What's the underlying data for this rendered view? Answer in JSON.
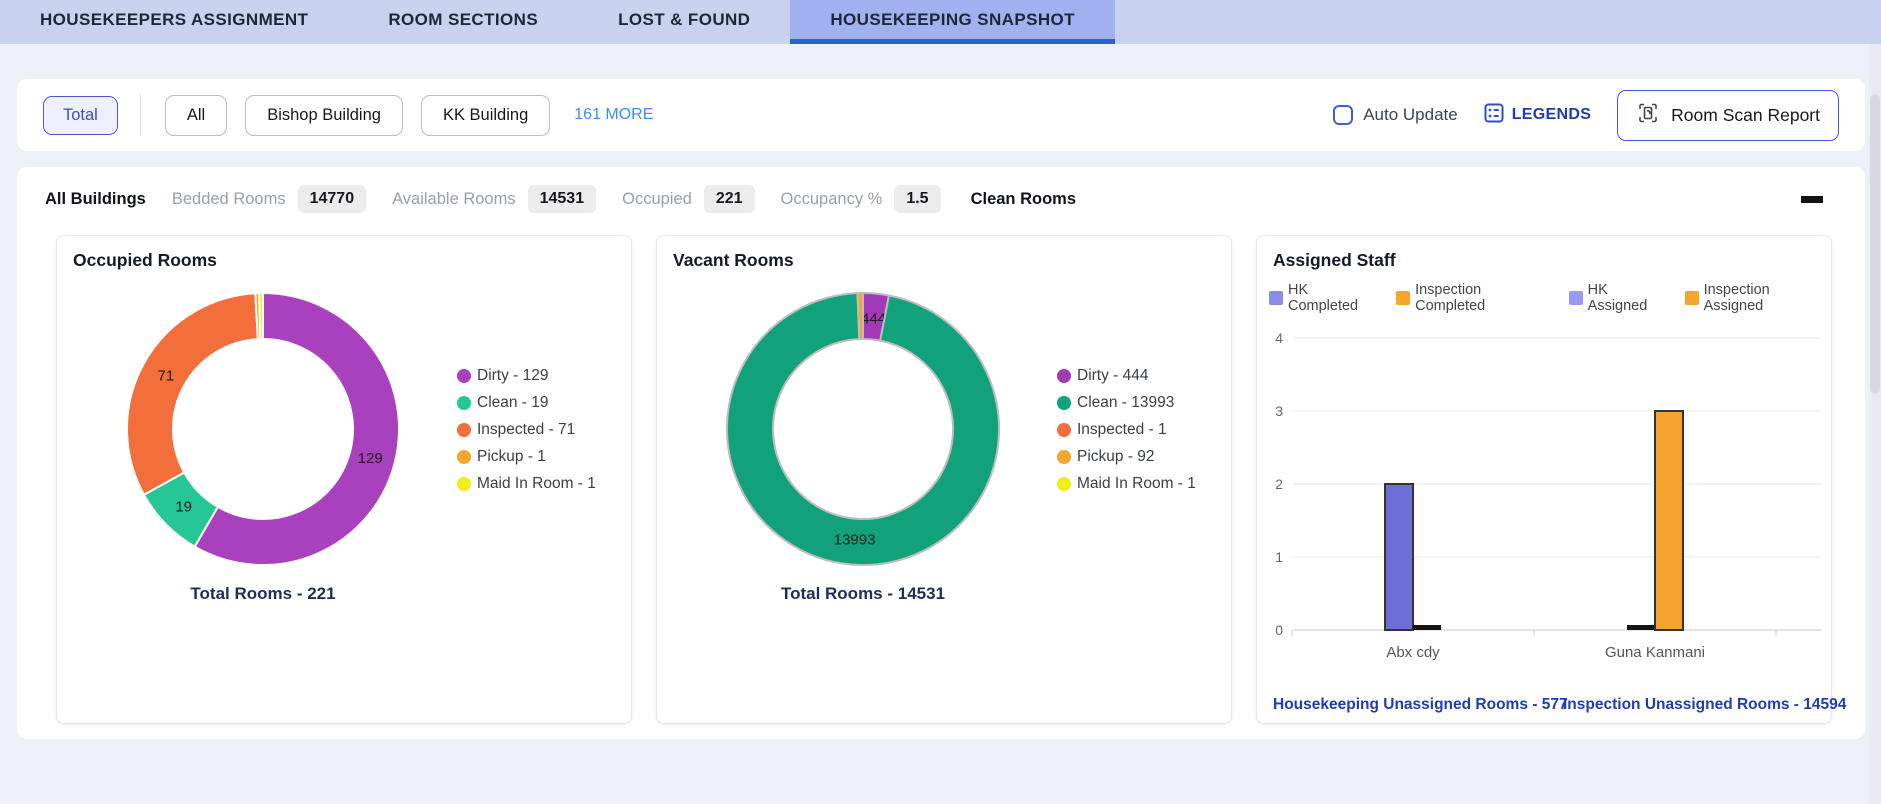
{
  "tabs": {
    "items": [
      {
        "label": "HOUSEKEEPERS ASSIGNMENT",
        "active": false
      },
      {
        "label": "ROOM SECTIONS",
        "active": false
      },
      {
        "label": "LOST & FOUND",
        "active": false
      },
      {
        "label": "HOUSEKEEPING SNAPSHOT",
        "active": true
      }
    ]
  },
  "filters": {
    "total_label": "Total",
    "buildings": [
      "All",
      "Bishop Building",
      "KK Building"
    ],
    "more_label": "161 MORE",
    "auto_update_label": "Auto Update",
    "auto_update_checked": false,
    "legends_label": "LEGENDS",
    "room_scan_label": "Room Scan Report"
  },
  "stats": {
    "group_label": "All Buildings",
    "items": [
      {
        "label": "Bedded Rooms",
        "value": "14770"
      },
      {
        "label": "Available Rooms",
        "value": "14531"
      },
      {
        "label": "Occupied",
        "value": "221"
      },
      {
        "label": "Occupancy %",
        "value": "1.5"
      }
    ],
    "clean_rooms_label": "Clean Rooms"
  },
  "colors": {
    "tabbar_bg": "#c8d2ef",
    "active_tab_bg": "#9fb1ee",
    "active_tab_underline": "#2e63c4",
    "accent_blue": "#3f5ed8",
    "link_blue": "#3d8bfd",
    "legend_link_blue": "#1f3cb4",
    "page_bg": "#edf0f6"
  },
  "chart_data": [
    {
      "type": "pie",
      "title": "Occupied Rooms",
      "caption": "Total Rooms - 221",
      "total": 221,
      "labels": [
        "Dirty",
        "Clean",
        "Inspected",
        "Pickup",
        "Maid In Room"
      ],
      "values": [
        129,
        19,
        71,
        1,
        1
      ],
      "colors": [
        "#a940bd",
        "#26c796",
        "#f26f3c",
        "#f5a62b",
        "#f0f019"
      ],
      "slice_stroke": "#ffffff",
      "label_min_frac": 0.03,
      "legend_position": "right"
    },
    {
      "type": "pie",
      "title": "Vacant Rooms",
      "caption": "Total Rooms - 14531",
      "total": 14531,
      "labels": [
        "Dirty",
        "Clean",
        "Inspected",
        "Pickup",
        "Maid In Room"
      ],
      "values": [
        444,
        13993,
        1,
        92,
        1
      ],
      "colors": [
        "#a23ab8",
        "#11a27c",
        "#f26f3c",
        "#f5a62b",
        "#f0f019"
      ],
      "slice_stroke": "#bdbdbd",
      "label_min_frac": 0.03,
      "legend_position": "right"
    },
    {
      "type": "bar",
      "title": "Assigned Staff",
      "categories": [
        "Abx cdy",
        "Guna Kanmani"
      ],
      "legend": [
        {
          "name": "HK Completed",
          "color": "#8c8ce6"
        },
        {
          "name": "Inspection Completed",
          "color": "#f5a62b"
        },
        {
          "name": "HK Assigned",
          "color": "#9a9af0"
        },
        {
          "name": "Inspection Assigned",
          "color": "#f5a62b"
        }
      ],
      "series": [
        {
          "name": "HK Completed",
          "color": "#6e6ed8",
          "values": [
            2,
            0
          ]
        },
        {
          "name": "Inspection Completed",
          "color": "#f5a32f",
          "values": [
            0,
            3
          ]
        },
        {
          "name": "HK Assigned",
          "color": "#9a9af0",
          "values": [
            0,
            0
          ]
        },
        {
          "name": "Inspection Assigned",
          "color": "#f5a62b",
          "values": [
            0,
            0
          ]
        }
      ],
      "ylim": [
        0,
        4
      ],
      "yticks": [
        0,
        1,
        2,
        3,
        4
      ],
      "grid": true,
      "links": [
        {
          "label": "Housekeeping Unassigned Rooms - 577"
        },
        {
          "label": "Inspection Unassigned Rooms - 14594"
        }
      ]
    }
  ]
}
